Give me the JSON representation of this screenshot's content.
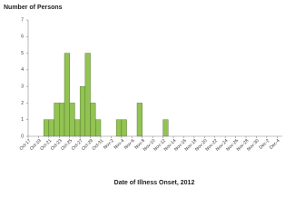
{
  "chart_data": {
    "type": "bar",
    "y_label": "Number of Persons",
    "x_label": "Date of Illness Onset, 2012",
    "categories": [
      "Oct-17",
      null,
      "Oct-19",
      null,
      "Oct-21",
      null,
      "Oct-23",
      null,
      "Oct-25",
      null,
      "Oct-27",
      null,
      "Oct-29",
      null,
      "Oct-31",
      null,
      "Nov-2",
      null,
      "Nov-4",
      null,
      "Nov-6",
      null,
      "Nov-8",
      null,
      "Nov-10",
      null,
      "Nov-12",
      null,
      "Nov-14",
      null,
      "Nov-16",
      null,
      "Nov-18",
      null,
      "Nov-20",
      null,
      "Nov-22",
      null,
      "Nov-24",
      null,
      "Nov-26",
      null,
      "Nov-28",
      null,
      "Nov-30",
      null,
      "Dec-2",
      null,
      "Dec-4"
    ],
    "values": [
      0,
      0,
      0,
      1,
      1,
      2,
      2,
      5,
      2,
      1,
      3,
      5,
      2,
      1,
      0,
      0,
      0,
      1,
      1,
      0,
      0,
      2,
      0,
      0,
      0,
      0,
      1,
      0,
      0,
      0,
      0,
      0,
      0,
      0,
      0,
      0,
      0,
      0,
      0,
      0,
      0,
      0,
      0,
      0,
      0,
      0,
      0,
      0,
      0
    ],
    "color": "#92c353",
    "ylim": [
      0,
      7
    ],
    "yticks": [
      0,
      1,
      2,
      3,
      4,
      5,
      6,
      7
    ],
    "grid": false
  }
}
